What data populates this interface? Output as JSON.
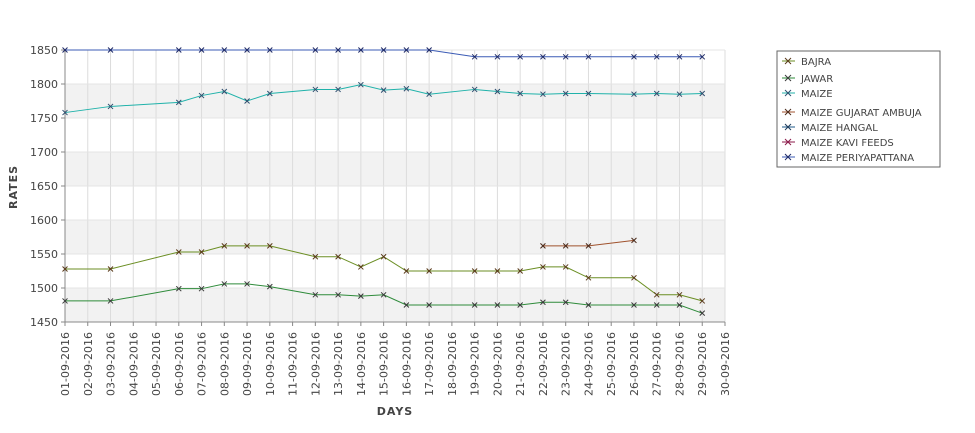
{
  "chart_data": {
    "type": "line",
    "title": "",
    "xlabel": "DAYS",
    "ylabel": "RATES",
    "ylim": [
      1450,
      1850
    ],
    "y_ticks": [
      1450,
      1500,
      1550,
      1600,
      1650,
      1700,
      1750,
      1800,
      1850
    ],
    "x_ticks": [
      "01-09-2016",
      "02-09-2016",
      "03-09-2016",
      "04-09-2016",
      "05-09-2016",
      "06-09-2016",
      "07-09-2016",
      "08-09-2016",
      "09-09-2016",
      "10-09-2016",
      "11-09-2016",
      "12-09-2016",
      "13-09-2016",
      "14-09-2016",
      "15-09-2016",
      "16-09-2016",
      "17-09-2016",
      "18-09-2016",
      "19-09-2016",
      "20-09-2016",
      "21-09-2016",
      "22-09-2016",
      "23-09-2016",
      "24-09-2016",
      "25-09-2016",
      "26-09-2016",
      "27-09-2016",
      "28-09-2016",
      "29-09-2016",
      "30-09-2016"
    ],
    "grid": true,
    "legend_position": "right",
    "series": [
      {
        "name": "BAJRA",
        "color": "#6b8e23",
        "marker_color": "#5a3a1a",
        "x": [
          "01-09-2016",
          "03-09-2016",
          "06-09-2016",
          "07-09-2016",
          "08-09-2016",
          "09-09-2016",
          "10-09-2016",
          "12-09-2016",
          "13-09-2016",
          "14-09-2016",
          "15-09-2016",
          "16-09-2016",
          "17-09-2016",
          "19-09-2016",
          "20-09-2016",
          "21-09-2016",
          "22-09-2016",
          "23-09-2016",
          "24-09-2016",
          "26-09-2016",
          "27-09-2016",
          "28-09-2016",
          "29-09-2016"
        ],
        "y": [
          1528,
          1528,
          1553,
          1553,
          1562,
          1562,
          1562,
          1546,
          1546,
          1531,
          1546,
          1525,
          1525,
          1525,
          1525,
          1525,
          1531,
          1531,
          1515,
          1515,
          1490,
          1490,
          1481
        ]
      },
      {
        "name": "JAWAR",
        "color": "#2e8b3a",
        "marker_color": "#3a3a3a",
        "x": [
          "01-09-2016",
          "03-09-2016",
          "06-09-2016",
          "07-09-2016",
          "08-09-2016",
          "09-09-2016",
          "10-09-2016",
          "12-09-2016",
          "13-09-2016",
          "14-09-2016",
          "15-09-2016",
          "16-09-2016",
          "17-09-2016",
          "19-09-2016",
          "20-09-2016",
          "21-09-2016",
          "22-09-2016",
          "23-09-2016",
          "24-09-2016",
          "26-09-2016",
          "27-09-2016",
          "28-09-2016",
          "29-09-2016"
        ],
        "y": [
          1481,
          1481,
          1499,
          1499,
          1506,
          1506,
          1502,
          1490,
          1490,
          1488,
          1490,
          1475,
          1475,
          1475,
          1475,
          1475,
          1479,
          1479,
          1475,
          1475,
          1475,
          1475,
          1463
        ]
      },
      {
        "name": "MAIZE",
        "color": "#20b2aa",
        "marker_color": "#2f4f6f",
        "x": [
          "01-09-2016",
          "03-09-2016",
          "06-09-2016",
          "07-09-2016",
          "08-09-2016",
          "09-09-2016",
          "10-09-2016",
          "12-09-2016",
          "13-09-2016",
          "14-09-2016",
          "15-09-2016",
          "16-09-2016",
          "17-09-2016",
          "19-09-2016",
          "20-09-2016",
          "21-09-2016",
          "22-09-2016",
          "23-09-2016",
          "24-09-2016",
          "26-09-2016",
          "27-09-2016",
          "28-09-2016",
          "29-09-2016"
        ],
        "y": [
          1758,
          1767,
          1773,
          1783,
          1789,
          1775,
          1786,
          1792,
          1792,
          1799,
          1791,
          1793,
          1785,
          1792,
          1789,
          1786,
          1785,
          1786,
          1786,
          1785,
          1786,
          1785,
          1786
        ]
      },
      {
        "name": "MAIZE GUJARAT AMBUJA",
        "color": "#a0522d",
        "marker_color": "#4a2a1a",
        "x": [
          "22-09-2016",
          "23-09-2016",
          "24-09-2016",
          "26-09-2016"
        ],
        "y": [
          1562,
          1562,
          1562,
          1570
        ]
      },
      {
        "name": "MAIZE HANGAL",
        "color": "#1e5a8a",
        "marker_color": "#1e3a5a",
        "x": [],
        "y": []
      },
      {
        "name": "MAIZE KAVI FEEDS",
        "color": "#8b1a4a",
        "marker_color": "#8b1a4a",
        "x": [],
        "y": []
      },
      {
        "name": "MAIZE PERIYAPATTANA",
        "color": "#3b5bb5",
        "marker_color": "#1f2a66",
        "x": [
          "01-09-2016",
          "03-09-2016",
          "06-09-2016",
          "07-09-2016",
          "08-09-2016",
          "09-09-2016",
          "10-09-2016",
          "12-09-2016",
          "13-09-2016",
          "14-09-2016",
          "15-09-2016",
          "16-09-2016",
          "17-09-2016",
          "19-09-2016",
          "20-09-2016",
          "21-09-2016",
          "22-09-2016",
          "23-09-2016",
          "24-09-2016",
          "26-09-2016",
          "27-09-2016",
          "28-09-2016",
          "29-09-2016"
        ],
        "y": [
          1850,
          1850,
          1850,
          1850,
          1850,
          1850,
          1850,
          1850,
          1850,
          1850,
          1850,
          1850,
          1850,
          1840,
          1840,
          1840,
          1840,
          1840,
          1840,
          1840,
          1840,
          1840,
          1840
        ]
      }
    ]
  }
}
